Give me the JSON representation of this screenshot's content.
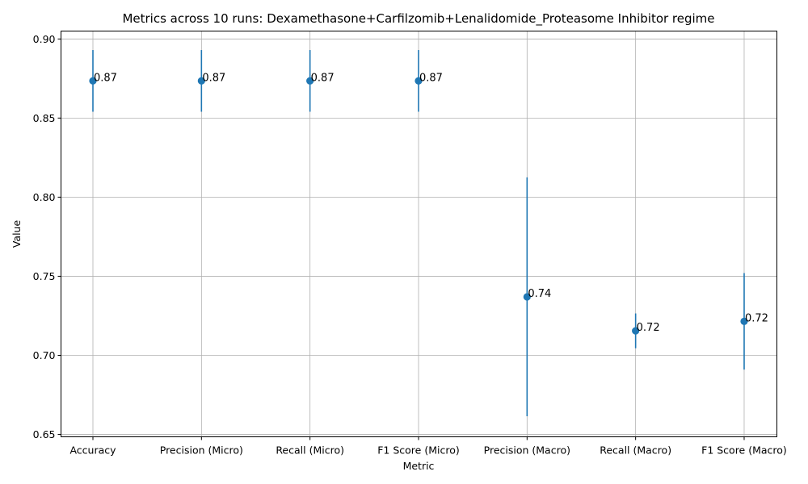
{
  "chart_data": {
    "type": "scatter",
    "title": "Metrics across 10 runs: Dexamethasone+Carfilzomib+Lenalidomide_Proteasome Inhibitor regime",
    "xlabel": "Metric",
    "ylabel": "Value",
    "categories": [
      "Accuracy",
      "Precision (Micro)",
      "Recall (Micro)",
      "F1 Score (Micro)",
      "Precision (Macro)",
      "Recall (Macro)",
      "F1 Score (Macro)"
    ],
    "values": [
      0.8735,
      0.8735,
      0.8735,
      0.8735,
      0.737,
      0.7155,
      0.7215
    ],
    "errors": [
      0.0195,
      0.0195,
      0.0195,
      0.0195,
      0.0755,
      0.011,
      0.0305
    ],
    "value_labels": [
      "0.87",
      "0.87",
      "0.87",
      "0.87",
      "0.74",
      "0.72",
      "0.72"
    ],
    "ylim": [
      0.6485,
      0.905
    ],
    "yticks": [
      0.65,
      0.7,
      0.75,
      0.8,
      0.85,
      0.9
    ],
    "ytick_labels": [
      "0.65",
      "0.70",
      "0.75",
      "0.80",
      "0.85",
      "0.90"
    ],
    "grid": true,
    "color": "#1f77b4"
  }
}
